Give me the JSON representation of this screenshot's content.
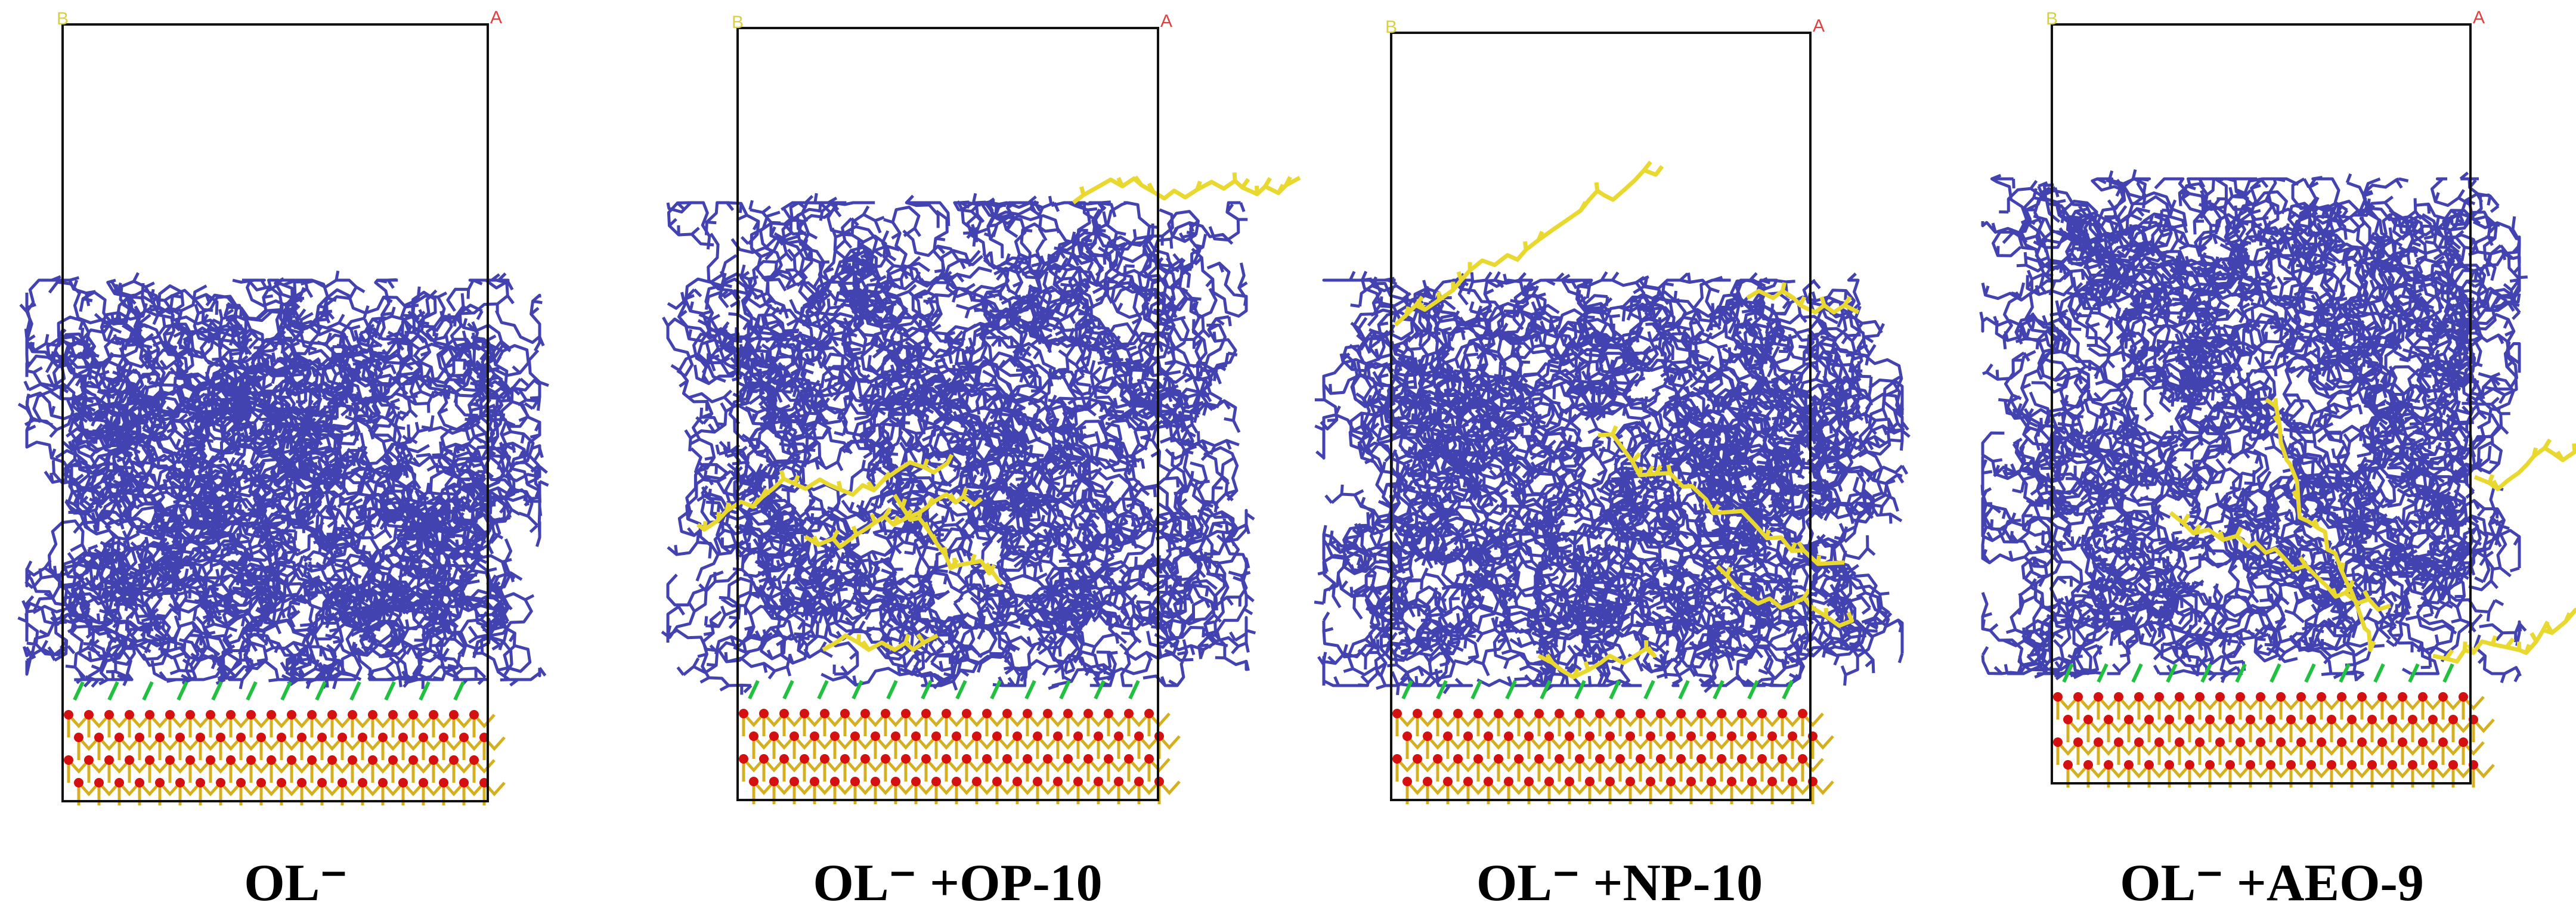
{
  "panels": [
    {
      "label": "OL⁻",
      "axis_b": "B",
      "axis_a": "A"
    },
    {
      "label": "OL⁻ +OP-10",
      "axis_b": "B",
      "axis_a": "A"
    },
    {
      "label": "OL⁻ +NP-10",
      "axis_b": "B",
      "axis_a": "A"
    },
    {
      "label": "OL⁻ +AEO-9",
      "axis_b": "B",
      "axis_a": "A"
    }
  ]
}
